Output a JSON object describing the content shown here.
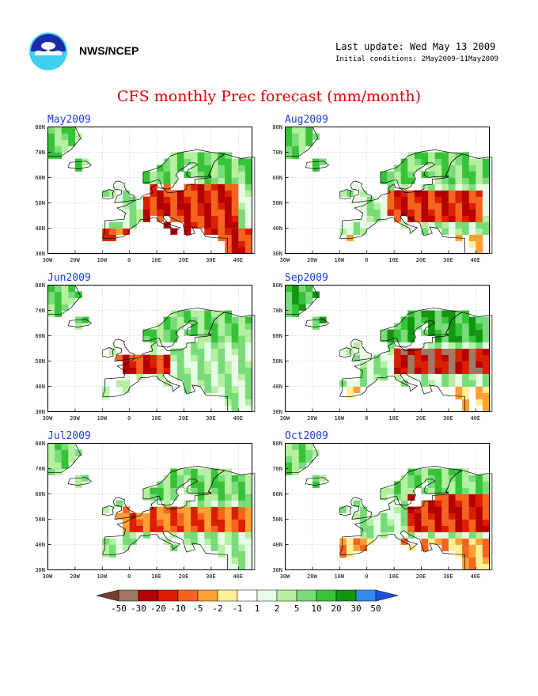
{
  "header": {
    "org": "NWS/NCEP",
    "last_update": "Last update: Wed May 13 2009",
    "initial_conditions": "Initial conditions: 2May2009~11May2009",
    "title": "CFS monthly Prec forecast (mm/month)",
    "logo_icon": "noaa-logo-icon"
  },
  "axes": {
    "lat_labels": [
      "80N",
      "70N",
      "60N",
      "50N",
      "40N",
      "30N"
    ],
    "lon_labels": [
      "30W",
      "20W",
      "10W",
      "0",
      "10E",
      "20E",
      "30E",
      "40E"
    ]
  },
  "panels": [
    {
      "month": "May2009",
      "pattern": "dry_southeast"
    },
    {
      "month": "Aug2009",
      "pattern": "dry_central"
    },
    {
      "month": "Jun2009",
      "pattern": "wet_east"
    },
    {
      "month": "Sep2009",
      "pattern": "dry_east"
    },
    {
      "month": "Jul2009",
      "pattern": "dry_central_wide"
    },
    {
      "month": "Oct2009",
      "pattern": "dry_east_mixed"
    }
  ],
  "legend": {
    "labels": [
      "-50",
      "-30",
      "-20",
      "-10",
      "-5",
      "-2",
      "-1",
      "1",
      "2",
      "5",
      "10",
      "20",
      "30",
      "50"
    ],
    "colors": [
      "#7a3f2d",
      "#a07864",
      "#b40000",
      "#dc1e00",
      "#f5641e",
      "#ffa032",
      "#fff096",
      "#ffffff",
      "#e6ffe6",
      "#b4f0a0",
      "#78dc78",
      "#37c337",
      "#129612",
      "#328cf0",
      "#1e50dc"
    ]
  }
}
